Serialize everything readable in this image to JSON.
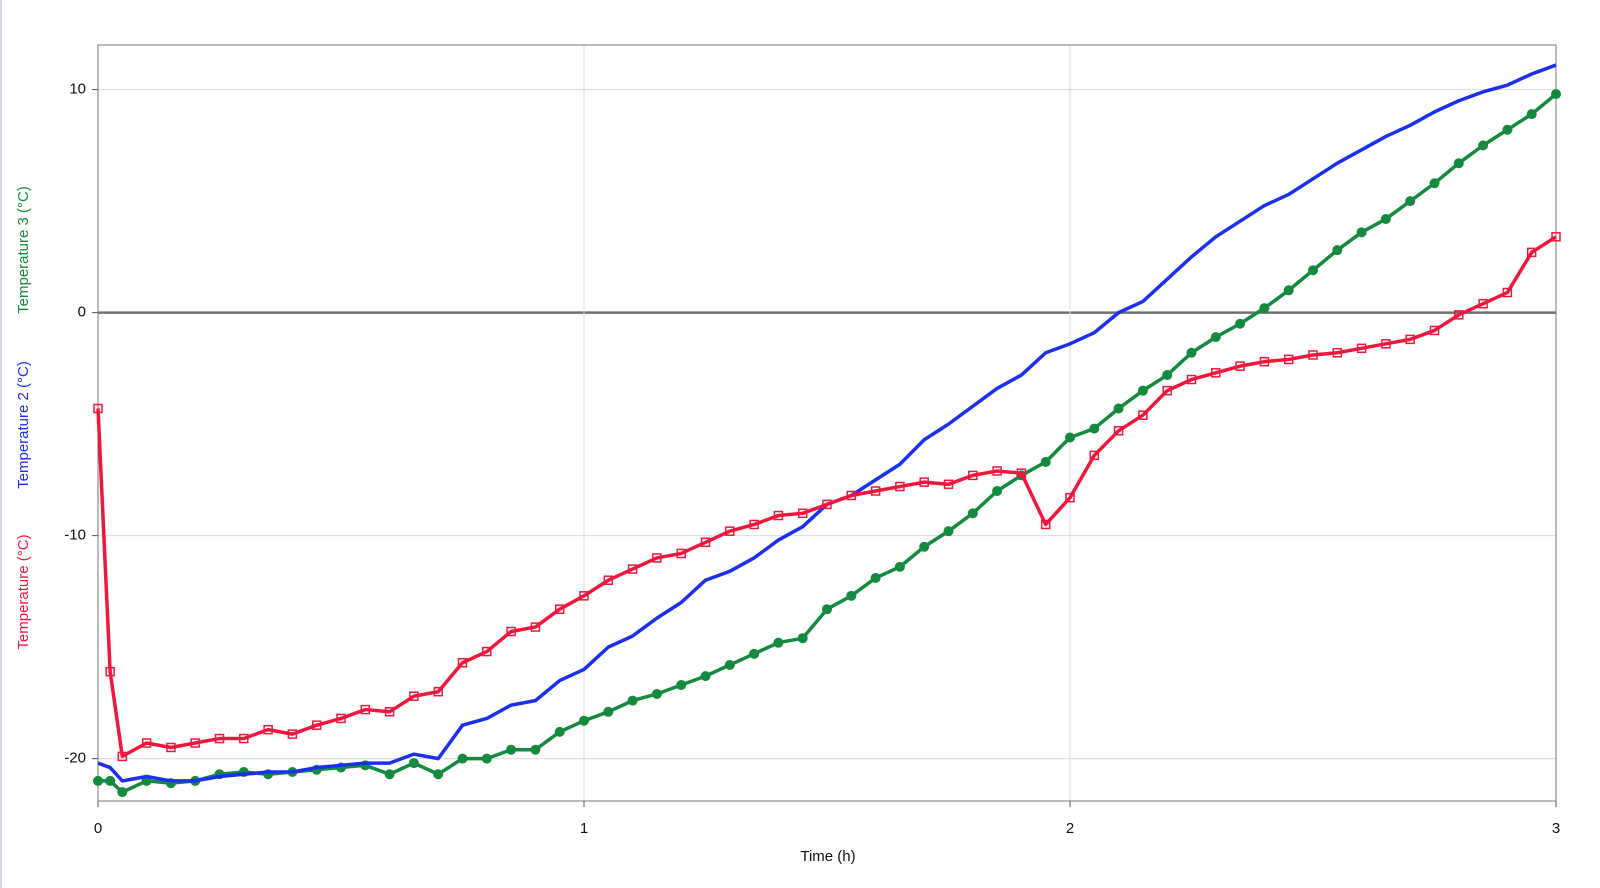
{
  "chart_data": {
    "type": "line",
    "x_label": "Time (h)",
    "x": [
      0,
      0.025,
      0.05,
      0.1,
      0.15,
      0.2,
      0.25,
      0.3,
      0.35,
      0.4,
      0.45,
      0.5,
      0.55,
      0.6,
      0.65,
      0.7,
      0.75,
      0.8,
      0.85,
      0.9,
      0.95,
      1.0,
      1.05,
      1.1,
      1.15,
      1.2,
      1.25,
      1.3,
      1.35,
      1.4,
      1.45,
      1.5,
      1.55,
      1.6,
      1.65,
      1.7,
      1.75,
      1.8,
      1.85,
      1.9,
      1.95,
      2.0,
      2.05,
      2.1,
      2.15,
      2.2,
      2.25,
      2.3,
      2.35,
      2.4,
      2.45,
      2.5,
      2.55,
      2.6,
      2.65,
      2.7,
      2.75,
      2.8,
      2.85,
      2.9,
      2.95,
      3.0
    ],
    "series": [
      {
        "name": "Temperature (°C)",
        "color": "#f0163c",
        "marker": "square",
        "values": [
          -4.3,
          -16.1,
          -19.9,
          -19.3,
          -19.5,
          -19.3,
          -19.1,
          -19.1,
          -18.7,
          -18.9,
          -18.5,
          -18.2,
          -17.8,
          -17.9,
          -17.2,
          -17.0,
          -15.7,
          -15.2,
          -14.3,
          -14.1,
          -13.3,
          -12.7,
          -12.0,
          -11.5,
          -11.0,
          -10.8,
          -10.3,
          -9.8,
          -9.5,
          -9.1,
          -9.0,
          -8.6,
          -8.2,
          -8.0,
          -7.8,
          -7.6,
          -7.7,
          -7.3,
          -7.1,
          -7.2,
          -9.5,
          -8.3,
          -6.4,
          -5.3,
          -4.6,
          -3.5,
          -3.0,
          -2.7,
          -2.4,
          -2.2,
          -2.1,
          -1.9,
          -1.8,
          -1.6,
          -1.4,
          -1.2,
          -0.8,
          -0.1,
          0.4,
          0.9,
          2.7,
          3.4
        ]
      },
      {
        "name": "Temperature 2 (°C)",
        "color": "#1a2ff0",
        "marker": "none",
        "values": [
          -20.2,
          -20.4,
          -21.0,
          -20.8,
          -21.0,
          -21.0,
          -20.8,
          -20.7,
          -20.6,
          -20.6,
          -20.4,
          -20.3,
          -20.2,
          -20.2,
          -19.8,
          -20.0,
          -18.5,
          -18.2,
          -17.6,
          -17.4,
          -16.5,
          -16.0,
          -15.0,
          -14.5,
          -13.7,
          -13.0,
          -12.0,
          -11.6,
          -11.0,
          -10.2,
          -9.6,
          -8.6,
          -8.2,
          -7.5,
          -6.8,
          -5.7,
          -5.0,
          -4.2,
          -3.4,
          -2.8,
          -1.8,
          -1.4,
          -0.9,
          0.0,
          0.5,
          1.5,
          2.5,
          3.4,
          4.1,
          4.8,
          5.3,
          6.0,
          6.7,
          7.3,
          7.9,
          8.4,
          9.0,
          9.5,
          9.9,
          10.2,
          10.7,
          11.1
        ]
      },
      {
        "name": "Temperature 3 (°C)",
        "color": "#138a3e",
        "marker": "circle",
        "values": [
          -21.0,
          -21.0,
          -21.5,
          -21.0,
          -21.1,
          -21.0,
          -20.7,
          -20.6,
          -20.7,
          -20.6,
          -20.5,
          -20.4,
          -20.3,
          -20.7,
          -20.2,
          -20.7,
          -20.0,
          -20.0,
          -19.6,
          -19.6,
          -18.8,
          -18.3,
          -17.9,
          -17.4,
          -17.1,
          -16.7,
          -16.3,
          -15.8,
          -15.3,
          -14.8,
          -14.6,
          -13.3,
          -12.7,
          -11.9,
          -11.4,
          -10.5,
          -9.8,
          -9.0,
          -8.0,
          -7.3,
          -6.7,
          -5.6,
          -5.2,
          -4.3,
          -3.5,
          -2.8,
          -1.8,
          -1.1,
          -0.5,
          0.2,
          1.0,
          1.9,
          2.8,
          3.6,
          4.2,
          5.0,
          5.8,
          6.7,
          7.5,
          8.2,
          8.9,
          9.8
        ]
      }
    ],
    "xlim": [
      0,
      3
    ],
    "xticks": [
      0,
      1,
      2,
      3
    ],
    "ylim": [
      -21.9,
      12
    ],
    "yticks": [
      -20,
      -10,
      0,
      10
    ],
    "grid": true
  }
}
